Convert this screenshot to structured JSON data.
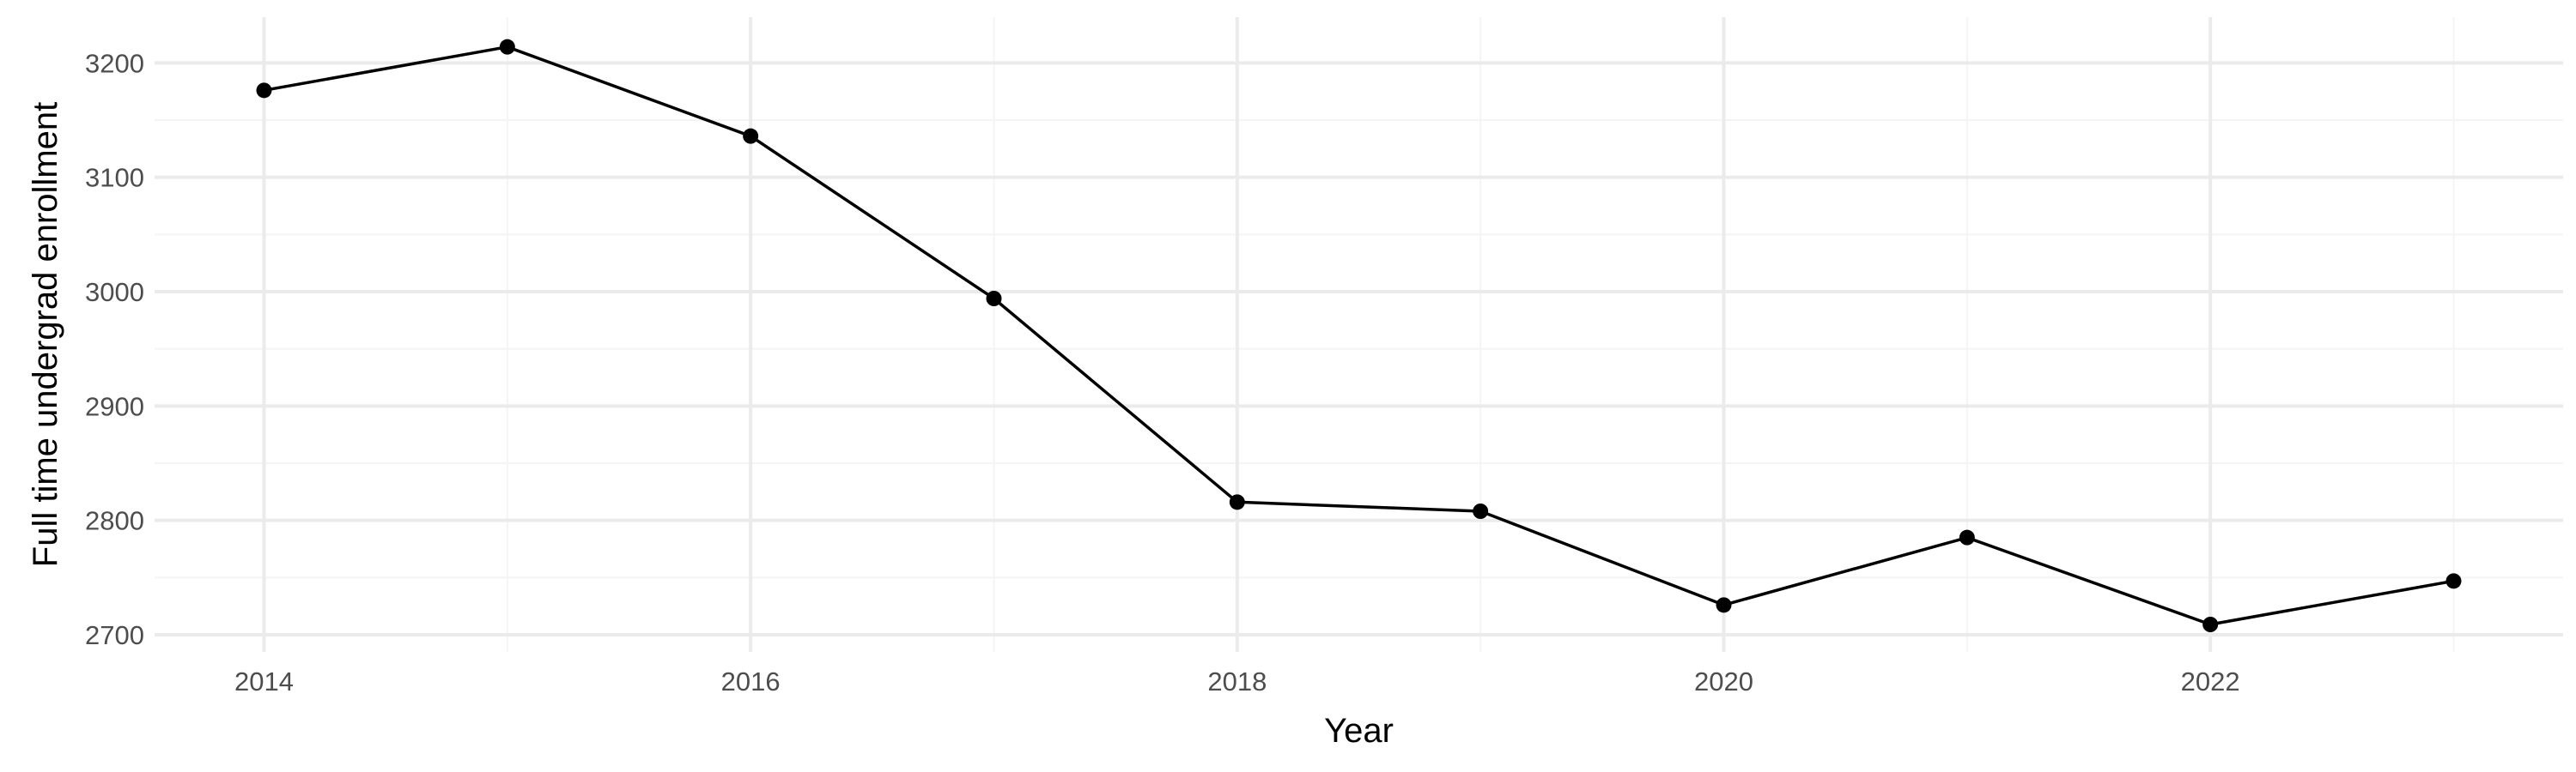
{
  "chart_data": {
    "type": "line",
    "title": "",
    "xlabel": "Year",
    "ylabel": "Full time undergrad enrollment",
    "x": [
      2014,
      2015,
      2016,
      2017,
      2018,
      2019,
      2020,
      2021,
      2022,
      2023
    ],
    "series": [
      {
        "values": [
          3176,
          3214,
          3136,
          2994,
          2816,
          2808,
          2726,
          2785,
          2709,
          2747
        ]
      }
    ],
    "xlim": [
      2013.55,
      2023.45
    ],
    "ylim": [
      2685,
      3240
    ],
    "x_ticks": [
      2014,
      2016,
      2018,
      2020,
      2022
    ],
    "x_tick_labels": [
      "2014",
      "2016",
      "2018",
      "2020",
      "2022"
    ],
    "x_minor_ticks": [
      2015,
      2017,
      2019,
      2021,
      2023
    ],
    "y_ticks": [
      2700,
      2800,
      2900,
      3000,
      3100,
      3200
    ],
    "y_tick_labels": [
      "2700",
      "2800",
      "2900",
      "3000",
      "3100",
      "3200"
    ],
    "y_minor_ticks": [
      2750,
      2850,
      2950,
      3050,
      3150
    ],
    "grid": true,
    "legend": "none",
    "colors": {
      "line": "#000000",
      "point": "#000000",
      "grid_major": "#ebebeb",
      "grid_minor": "#f4f4f4",
      "tick_text": "#4d4d4d",
      "title_text": "#000000"
    }
  }
}
